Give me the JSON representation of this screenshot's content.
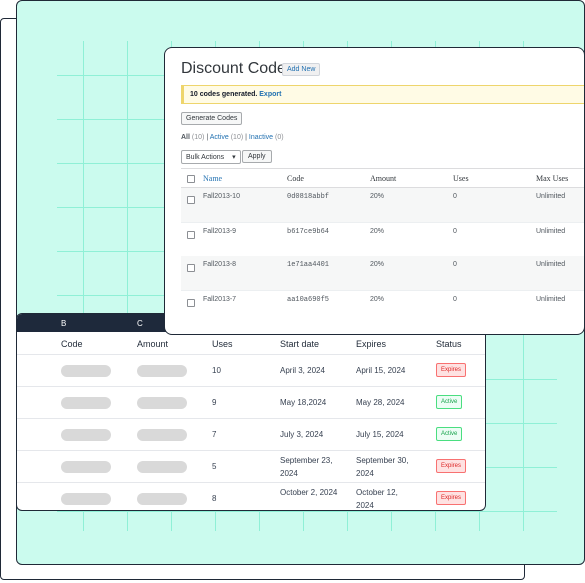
{
  "discount_codes": {
    "title": "Discount Codes",
    "add_new_label": "Add New",
    "notice_text": "10 codes generated.",
    "notice_link": "Export",
    "generate_button": "Generate Codes",
    "filters": {
      "all_label": "All",
      "all_count": "(10)",
      "sep1": "|",
      "active_label": "Active",
      "active_count": "(10)",
      "sep2": "|",
      "inactive_label": "Inactive",
      "inactive_count": "(0)"
    },
    "bulk_actions_label": "Bulk Actions",
    "bulk_caret": "▾",
    "apply_label": "Apply",
    "columns": [
      "Name",
      "Code",
      "Amount",
      "Uses",
      "Max Uses"
    ],
    "rows": [
      {
        "name": "Fall2013-10",
        "code": "0d0818abbf",
        "amount": "20%",
        "uses": "0",
        "max_uses": "Unlimited"
      },
      {
        "name": "Fall2013-9",
        "code": "b617ce9b64",
        "amount": "20%",
        "uses": "0",
        "max_uses": "Unlimited"
      },
      {
        "name": "Fall2013-8",
        "code": "1e71aa4401",
        "amount": "20%",
        "uses": "0",
        "max_uses": "Unlimited"
      },
      {
        "name": "Fall2013-7",
        "code": "aa10a690f5",
        "amount": "20%",
        "uses": "0",
        "max_uses": "Unlimited"
      }
    ]
  },
  "codes_table": {
    "top_header": [
      "B",
      "C"
    ],
    "columns": [
      "Code",
      "Amount",
      "Uses",
      "Start date",
      "Expires",
      "Status"
    ],
    "rows": [
      {
        "uses": "10",
        "start": "April 3, 2024",
        "expires": "April 15, 2024",
        "status": "Expires",
        "status_kind": "expired"
      },
      {
        "uses": "9",
        "start": "May 18,2024",
        "expires": "May 28, 2024",
        "status": "Active",
        "status_kind": "active"
      },
      {
        "uses": "7",
        "start": "July 3, 2024",
        "expires": "July 15, 2024",
        "status": "Active",
        "status_kind": "active"
      },
      {
        "uses": "5",
        "start": "September 23, 2024",
        "expires": "September 30, 2024",
        "status": "Expires",
        "status_kind": "expired"
      },
      {
        "uses": "8",
        "start": "October 2, 2024",
        "expires": "October 12, 2024",
        "status": "Expires",
        "status_kind": "expired"
      }
    ]
  },
  "colors": {
    "mint_background": "#cbfbee",
    "header_dark": "#1e293b",
    "link_blue": "#2271b1",
    "expired_red": "#dc2626",
    "active_green": "#16a34a"
  }
}
